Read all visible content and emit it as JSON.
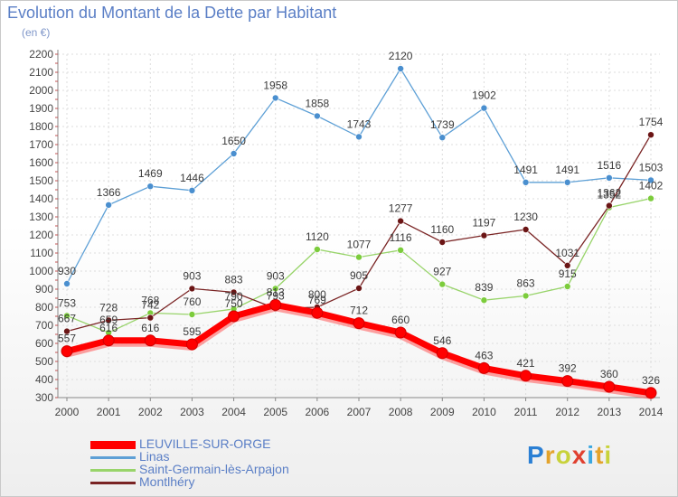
{
  "header": {
    "title": "Evolution du Montant de la Dette par Habitant",
    "subtitle": "(en €)"
  },
  "brand": {
    "letters": [
      "P",
      "r",
      "o",
      "x",
      "i",
      "t",
      "i"
    ],
    "colors": [
      "#2a7fd4",
      "#e3a32c",
      "#c8d23a",
      "#e0402f",
      "#3aa7e0",
      "#e3a32c",
      "#c8d23a"
    ]
  },
  "chart_data": {
    "type": "line",
    "title": "Evolution du Montant de la Dette par Habitant",
    "subtitle": "(en €)",
    "xlabel": "",
    "ylabel": "",
    "categories": [
      "2000",
      "2001",
      "2002",
      "2003",
      "2004",
      "2005",
      "2006",
      "2007",
      "2008",
      "2009",
      "2010",
      "2011",
      "2012",
      "2013",
      "2014"
    ],
    "ylim": [
      300,
      2200
    ],
    "yticks": [
      300,
      400,
      500,
      600,
      700,
      800,
      900,
      1000,
      1100,
      1200,
      1300,
      1400,
      1500,
      1600,
      1700,
      1800,
      1900,
      2000,
      2100,
      2200
    ],
    "grid": true,
    "legend_position": "bottom-left",
    "series": [
      {
        "name": "LEUVILLE-SUR-ORGE",
        "color": "#ff0000",
        "marker_color": "#ff0000",
        "emphasis": true,
        "values": [
          557,
          616,
          616,
          595,
          750,
          813,
          769,
          712,
          660,
          546,
          463,
          421,
          392,
          360,
          326
        ]
      },
      {
        "name": "Linas",
        "color": "#5ea0d6",
        "marker_color": "#4a8fcf",
        "values": [
          930,
          1366,
          1469,
          1446,
          1650,
          1958,
          1858,
          1743,
          2120,
          1739,
          1902,
          1491,
          1491,
          1516,
          1503
        ]
      },
      {
        "name": "Saint-Germain-lès-Arpajon",
        "color": "#98d46a",
        "marker_color": "#7ccc3c",
        "values": [
          753,
          659,
          768,
          760,
          790,
          903,
          1120,
          1077,
          1116,
          927,
          839,
          863,
          915,
          1352,
          1402
        ]
      },
      {
        "name": "Montlhéry",
        "color": "#7a2424",
        "marker_color": "#6b1515",
        "values": [
          667,
          728,
          742,
          903,
          883,
          793,
          800,
          905,
          1277,
          1160,
          1197,
          1230,
          1031,
          1362,
          1754
        ]
      }
    ]
  }
}
